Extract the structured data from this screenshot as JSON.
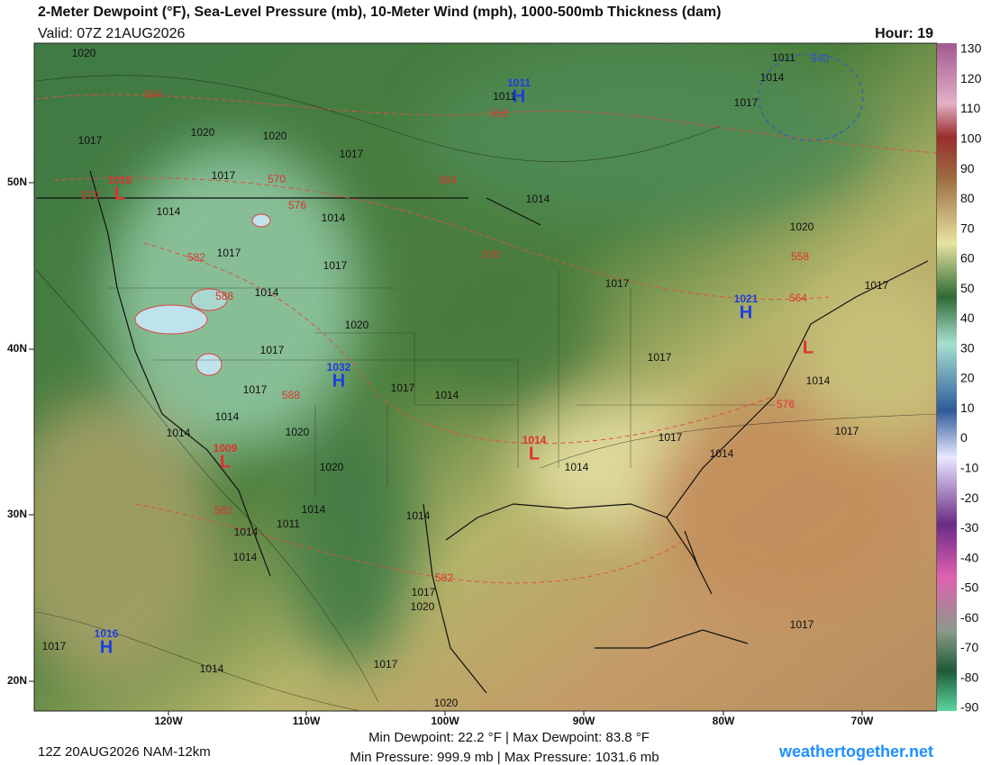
{
  "header": {
    "title": "2-Meter Dewpoint (°F), Sea-Level Pressure (mb), 10-Meter Wind (mph), 1000-500mb Thickness (dam)",
    "valid": "Valid: 07Z 21AUG2026",
    "hour": "Hour: 19"
  },
  "colorbar": {
    "ticks": [
      "130",
      "120",
      "110",
      "100",
      "90",
      "80",
      "70",
      "60",
      "50",
      "40",
      "30",
      "20",
      "10",
      "0",
      "-10",
      "-20",
      "-30",
      "-40",
      "-50",
      "-60",
      "-70",
      "-80",
      "-90"
    ]
  },
  "latitude_labels": [
    "50N",
    "40N",
    "30N",
    "20N"
  ],
  "longitude_labels": [
    "120W",
    "110W",
    "100W",
    "90W",
    "80W",
    "70W"
  ],
  "pressure_centers": [
    {
      "letter": "H",
      "value": "1011"
    },
    {
      "letter": "H",
      "value": "1021"
    },
    {
      "letter": "H",
      "value": "1032"
    },
    {
      "letter": "H",
      "value": "1016"
    },
    {
      "letter": "L",
      "value": "1015"
    },
    {
      "letter": "L",
      "value": "1009"
    },
    {
      "letter": "L",
      "value": "1014"
    },
    {
      "letter": "L"
    }
  ],
  "isobar_labels": [
    "1020",
    "1017",
    "1020",
    "1020",
    "1017",
    "1017",
    "1014",
    "1014",
    "1017",
    "1017",
    "1014",
    "1020",
    "1017",
    "1017",
    "1014",
    "1014",
    "1020",
    "1020",
    "1014",
    "1011",
    "1014",
    "1014",
    "1014",
    "1017",
    "1020",
    "1017",
    "1020",
    "1017",
    "1014",
    "1014",
    "1017",
    "1014",
    "1017",
    "1017",
    "1014",
    "1014",
    "1017",
    "1017",
    "1017",
    "1020",
    "1014",
    "1017",
    "1017",
    "1011",
    "1014",
    "1011"
  ],
  "thickness_labels": [
    "564",
    "558",
    "570",
    "564",
    "576",
    "570",
    "582",
    "588",
    "588",
    "582",
    "582",
    "576",
    "564",
    "558",
    "570",
    "540"
  ],
  "footer": {
    "run": "12Z 20AUG2026 NAM-12km",
    "dewpoint_range": "Min Dewpoint:  22.2 °F | Max Dewpoint:  83.8 °F",
    "pressure_range": "Min Pressure: 999.9 mb | Max Pressure: 1031.6 mb",
    "site": "weathertogether.net"
  }
}
